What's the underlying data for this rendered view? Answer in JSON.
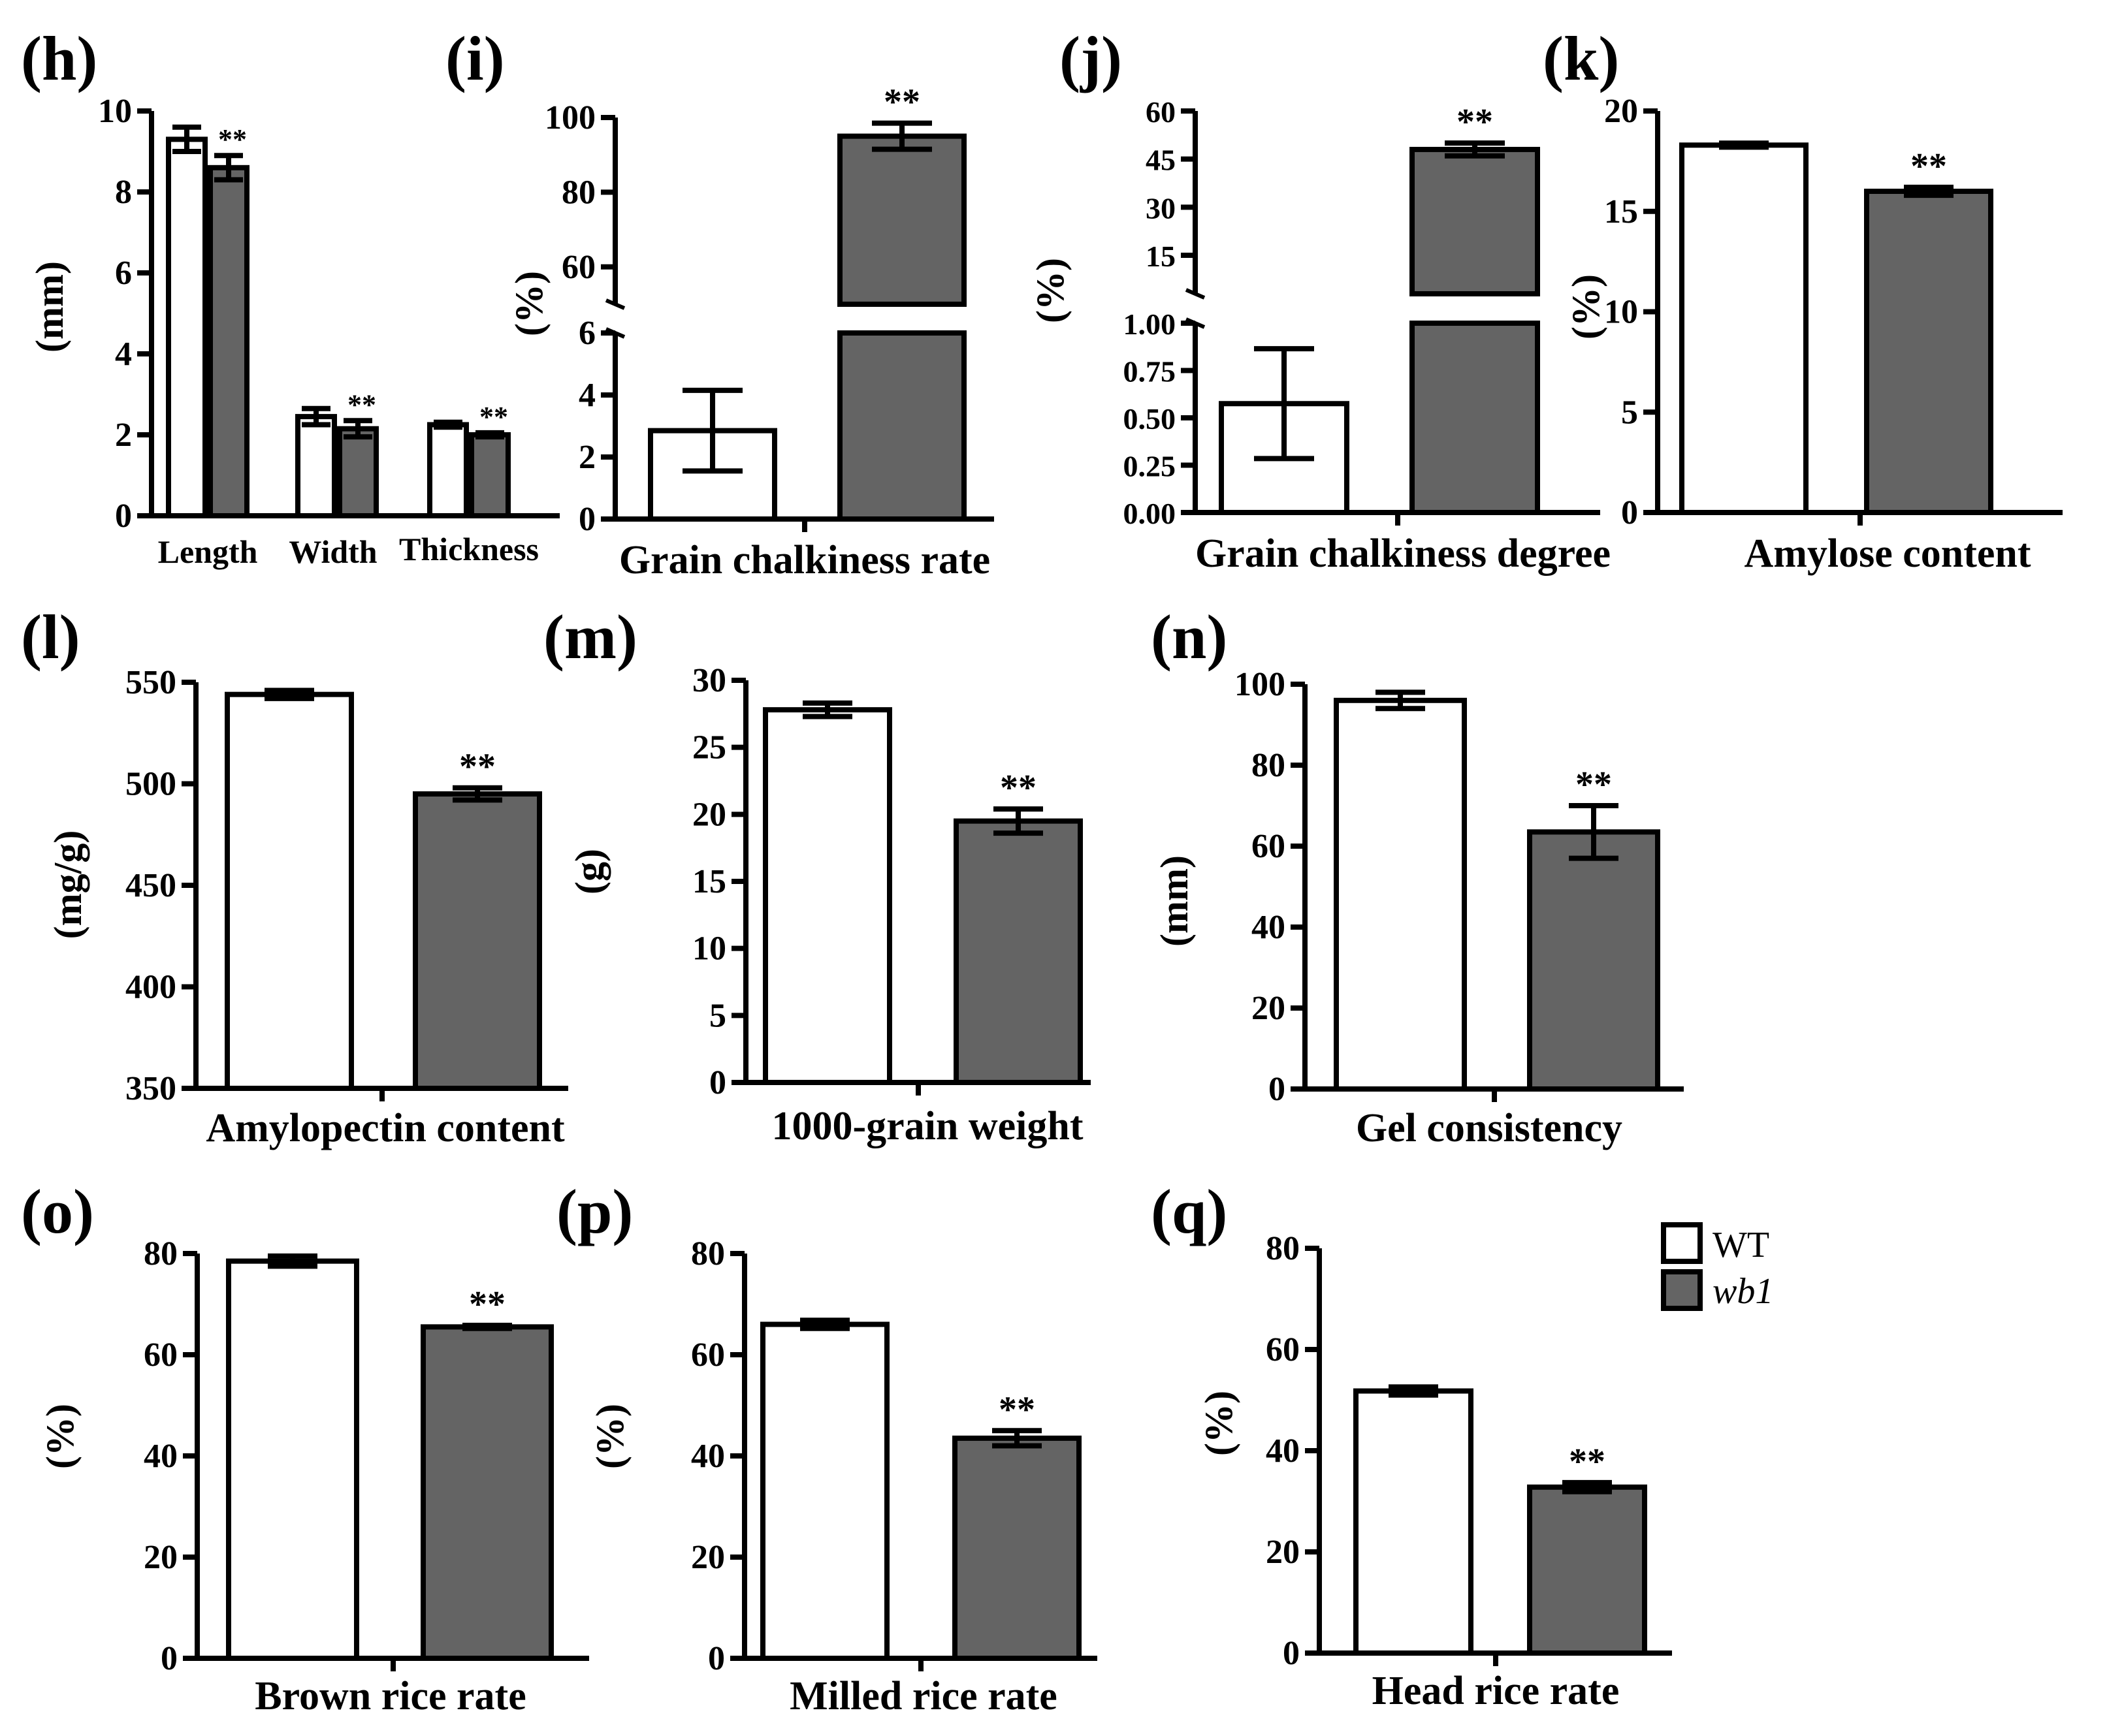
{
  "colors": {
    "wt": "#ffffff",
    "wb1": "#646464",
    "stroke": "#000000"
  },
  "legend": {
    "wt": "WT",
    "wb1": "wb1"
  },
  "chart_data": [
    {
      "id": "h",
      "panel_label": "(h)",
      "type": "bar",
      "ylabel": "(mm)",
      "xlabel": "",
      "categories": [
        "Length",
        "Width",
        "Thickness"
      ],
      "series": [
        {
          "name": "WT",
          "values": [
            9.3,
            2.45,
            2.25
          ],
          "errors": [
            0.3,
            0.2,
            0.06
          ]
        },
        {
          "name": "wb1",
          "values": [
            8.6,
            2.15,
            2.0
          ],
          "errors": [
            0.3,
            0.2,
            0.05
          ]
        }
      ],
      "significance": [
        "**",
        "**",
        "**"
      ],
      "ylim": [
        0,
        10
      ],
      "yticks": [
        0,
        2,
        4,
        6,
        8,
        10
      ]
    },
    {
      "id": "i",
      "panel_label": "(i)",
      "type": "bar",
      "ylabel": "(%)",
      "xlabel": "Grain chalkiness rate",
      "categories": [
        "WT",
        "wb1"
      ],
      "values": [
        2.85,
        95
      ],
      "errors": [
        1.3,
        3.5
      ],
      "significance": [
        "",
        "**"
      ],
      "ylim_lower": [
        0,
        6
      ],
      "yticks_lower": [
        0,
        2,
        4,
        6
      ],
      "ylim_upper": [
        50,
        100
      ],
      "yticks_upper": [
        60,
        80,
        100
      ]
    },
    {
      "id": "j",
      "panel_label": "(j)",
      "type": "bar",
      "ylabel": "(%)",
      "xlabel": "Grain chalkiness degree",
      "categories": [
        "WT",
        "wb1"
      ],
      "values": [
        0.575,
        48
      ],
      "errors": [
        0.29,
        2
      ],
      "significance": [
        "",
        "**"
      ],
      "ylim_lower": [
        0,
        1
      ],
      "yticks_lower": [
        "0.00",
        "0.25",
        "0.50",
        "0.75",
        "1.00"
      ],
      "ylim_upper": [
        3,
        60
      ],
      "yticks_upper": [
        15,
        30,
        45,
        60
      ]
    },
    {
      "id": "k",
      "panel_label": "(k)",
      "type": "bar",
      "ylabel": "(%)",
      "xlabel": "Amylose content",
      "categories": [
        "WT",
        "wb1"
      ],
      "values": [
        18.3,
        16.0
      ],
      "errors": [
        0.1,
        0.2
      ],
      "significance": [
        "",
        "**"
      ],
      "ylim": [
        0,
        20
      ],
      "yticks": [
        0,
        5,
        10,
        15,
        20
      ]
    },
    {
      "id": "l",
      "panel_label": "(l)",
      "type": "bar",
      "ylabel": "(mg/g)",
      "xlabel": "Amylopectin content",
      "categories": [
        "WT",
        "wb1"
      ],
      "values": [
        544,
        495
      ],
      "errors": [
        2,
        3
      ],
      "significance": [
        "",
        "**"
      ],
      "ylim": [
        350,
        550
      ],
      "yticks": [
        350,
        400,
        450,
        500,
        550
      ]
    },
    {
      "id": "m",
      "panel_label": "(m)",
      "type": "bar",
      "ylabel": "(g)",
      "xlabel": "1000-grain weight",
      "categories": [
        "WT",
        "wb1"
      ],
      "values": [
        27.8,
        19.5
      ],
      "errors": [
        0.5,
        0.9
      ],
      "significance": [
        "",
        "**"
      ],
      "ylim": [
        0,
        30
      ],
      "yticks": [
        0,
        5,
        10,
        15,
        20,
        25,
        30
      ]
    },
    {
      "id": "n",
      "panel_label": "(n)",
      "type": "bar",
      "ylabel": "(mm)",
      "xlabel": "Gel consistency",
      "categories": [
        "WT",
        "wb1"
      ],
      "values": [
        96,
        63.5
      ],
      "errors": [
        2,
        6.5
      ],
      "significance": [
        "",
        "**"
      ],
      "ylim": [
        0,
        100
      ],
      "yticks": [
        0,
        20,
        40,
        60,
        80,
        100
      ]
    },
    {
      "id": "o",
      "panel_label": "(o)",
      "type": "bar",
      "ylabel": "(%)",
      "xlabel": "Brown rice rate",
      "categories": [
        "WT",
        "wb1"
      ],
      "values": [
        78.5,
        65.5
      ],
      "errors": [
        1,
        0.3
      ],
      "significance": [
        "",
        "**"
      ],
      "ylim": [
        0,
        80
      ],
      "yticks": [
        0,
        20,
        40,
        60,
        80
      ]
    },
    {
      "id": "p",
      "panel_label": "(p)",
      "type": "bar",
      "ylabel": "(%)",
      "xlabel": "Milled rice rate",
      "categories": [
        "WT",
        "wb1"
      ],
      "values": [
        66,
        43.5
      ],
      "errors": [
        0.8,
        1.5
      ],
      "significance": [
        "",
        "**"
      ],
      "ylim": [
        0,
        80
      ],
      "yticks": [
        0,
        20,
        40,
        60,
        80
      ]
    },
    {
      "id": "q",
      "panel_label": "(q)",
      "type": "bar",
      "ylabel": "(%)",
      "xlabel": "Head rice rate",
      "categories": [
        "WT",
        "wb1"
      ],
      "values": [
        51.8,
        32.8
      ],
      "errors": [
        0.8,
        0.9
      ],
      "significance": [
        "",
        "**"
      ],
      "ylim": [
        0,
        80
      ],
      "yticks": [
        0,
        20,
        40,
        60,
        80
      ]
    }
  ]
}
